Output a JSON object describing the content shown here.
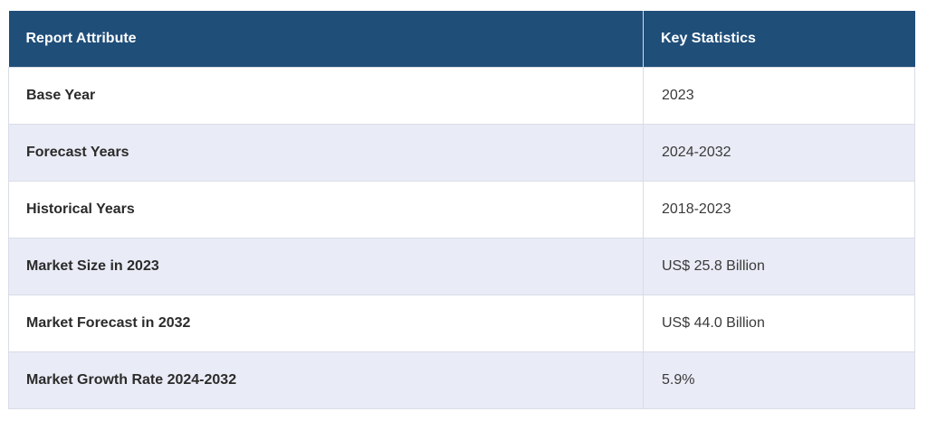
{
  "table": {
    "headers": [
      "Report Attribute",
      "Key Statistics"
    ],
    "rows": [
      {
        "attribute": "Base Year",
        "value": "2023"
      },
      {
        "attribute": "Forecast Years",
        "value": "2024-2032"
      },
      {
        "attribute": "Historical Years",
        "value": "2018-2023"
      },
      {
        "attribute": "Market Size in 2023",
        "value": "US$ 25.8 Billion"
      },
      {
        "attribute": "Market Forecast in 2032",
        "value": "US$ 44.0 Billion"
      },
      {
        "attribute": "Market Growth Rate 2024-2032",
        "value": "5.9%"
      }
    ]
  },
  "colors": {
    "header_bg": "#1f4e79",
    "header_text": "#ffffff",
    "alt_row_bg": "#e9ebf6",
    "row_bg": "#ffffff"
  }
}
